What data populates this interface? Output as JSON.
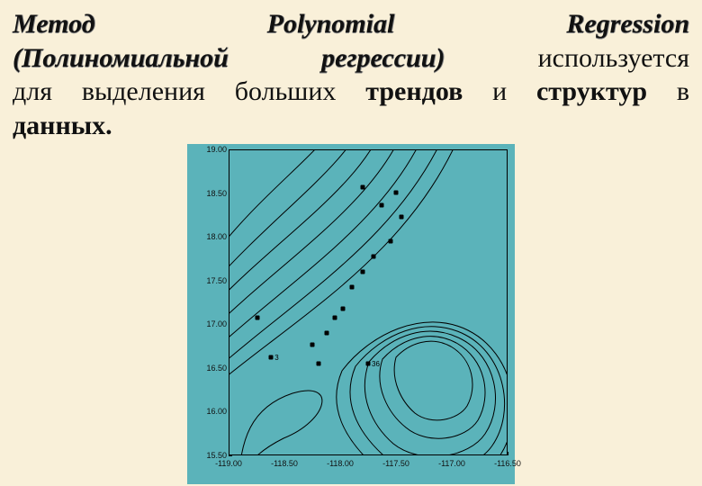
{
  "heading": {
    "w1": "Метод",
    "w2": "Polynomial",
    "w3": "Regression",
    "paren": "(Полиномиальной регрессии)",
    "trail": " используется"
  },
  "body": {
    "line1": "для выделения больших",
    "trends": "трендов",
    "mid": " и ",
    "struct": "структур",
    "tail": " в"
  },
  "body2": "данных.",
  "figure": {
    "bg_color": "#5bb3ba",
    "border_color": "#000000",
    "yticks": [
      "19.00",
      "18.50",
      "18.00",
      "17.50",
      "17.00",
      "16.50",
      "16.00",
      "15.50"
    ],
    "xticks": [
      "-119.00",
      "-118.50",
      "-118.00",
      "-117.50",
      "-117.00",
      "-116.50"
    ],
    "points": [
      {
        "xp": 48,
        "yp": 12,
        "label": ""
      },
      {
        "xp": 55,
        "yp": 18,
        "label": ""
      },
      {
        "xp": 60,
        "yp": 14,
        "label": ""
      },
      {
        "xp": 62,
        "yp": 22,
        "label": ""
      },
      {
        "xp": 58,
        "yp": 30,
        "label": ""
      },
      {
        "xp": 52,
        "yp": 35,
        "label": ""
      },
      {
        "xp": 48,
        "yp": 40,
        "label": ""
      },
      {
        "xp": 44,
        "yp": 45,
        "label": ""
      },
      {
        "xp": 41,
        "yp": 52,
        "label": ""
      },
      {
        "xp": 38,
        "yp": 55,
        "label": ""
      },
      {
        "xp": 35,
        "yp": 60,
        "label": ""
      },
      {
        "xp": 30,
        "yp": 64,
        "label": ""
      },
      {
        "xp": 32,
        "yp": 70,
        "label": ""
      },
      {
        "xp": 50,
        "yp": 70,
        "label": "36"
      },
      {
        "xp": 15,
        "yp": 68,
        "label": "3"
      },
      {
        "xp": 10,
        "yp": 55,
        "label": ""
      }
    ],
    "contours": [
      "M -20 120 C 40 40, 120 -10, 120 -40",
      "M -20 150 C 50 70, 140 10, 150 -40",
      "M -20 175 C 55 95, 155 35, 175 -40",
      "M -20 200 C 60 120, 170 55, 200 -40",
      "M -20 225 C 65 145, 185 75, 225 -40",
      "M -20 248 C 72 165, 198 95, 248 -40",
      "M -20 265 C 78 182, 210 112, 265 -40",
      "M 10 380 C 10 320, 25 285, 70 270 C 120 255, 110 300, 60 320 C 30 335, 10 355, 10 380 Z",
      "M 125 245 C 155 205, 215 175, 265 200 C 315 225, 330 295, 300 340 C 275 378, 200 385, 160 350 C 128 320, 108 285, 125 245 Z",
      "M 140 240 C 168 205, 218 182, 262 205 C 306 228, 318 290, 292 328 C 270 360, 205 368, 170 338 C 142 312, 124 278, 140 240 Z",
      "M 155 235 C 180 206, 220 190, 258 210 C 296 230, 306 282, 284 315 C 266 342, 212 350, 182 326 C 158 305, 142 272, 155 235 Z",
      "M 170 232 C 190 210, 222 198, 252 214 C 284 232, 292 272, 276 300 C 262 322, 220 328, 196 308 C 176 292, 160 262, 170 232 Z",
      "M 185 230 C 200 214, 224 206, 246 218 C 270 232, 276 262, 264 284 C 254 300, 224 306, 206 292 C 192 280, 178 256, 185 230 Z"
    ],
    "contour_stroke": "#000000",
    "contour_width": 1
  }
}
